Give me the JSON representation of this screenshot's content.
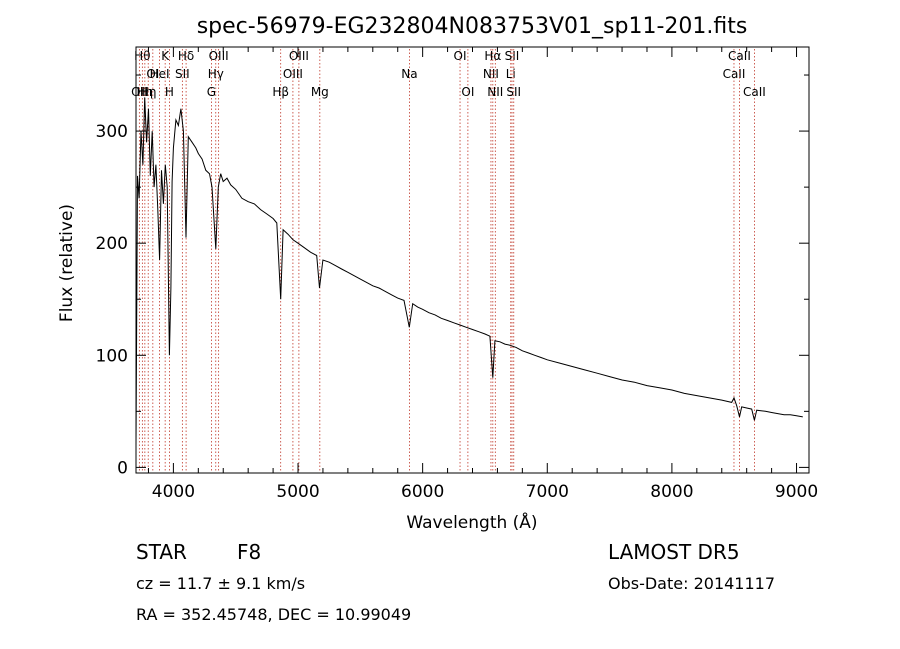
{
  "chart_data": {
    "type": "line",
    "title": "spec-56979-EG232804N083753V01_sp11-201.fits",
    "xlabel": "Wavelength (Å)",
    "ylabel": "Flux (relative)",
    "xlim": [
      3700,
      9100
    ],
    "ylim": [
      -5,
      375
    ],
    "xticks": [
      4000,
      5000,
      6000,
      7000,
      8000,
      9000
    ],
    "yticks": [
      0,
      100,
      200,
      300
    ],
    "grid": false,
    "series": [
      {
        "points": [
          [
            3700,
            20
          ],
          [
            3712,
            260
          ],
          [
            3725,
            240
          ],
          [
            3740,
            300
          ],
          [
            3755,
            270
          ],
          [
            3770,
            330
          ],
          [
            3785,
            290
          ],
          [
            3800,
            320
          ],
          [
            3815,
            260
          ],
          [
            3830,
            300
          ],
          [
            3845,
            250
          ],
          [
            3860,
            270
          ],
          [
            3875,
            230
          ],
          [
            3889,
            185
          ],
          [
            3905,
            265
          ],
          [
            3920,
            235
          ],
          [
            3935,
            270
          ],
          [
            3950,
            250
          ],
          [
            3968,
            100
          ],
          [
            3980,
            160
          ],
          [
            3990,
            255
          ],
          [
            4000,
            285
          ],
          [
            4020,
            310
          ],
          [
            4040,
            305
          ],
          [
            4060,
            320
          ],
          [
            4080,
            300
          ],
          [
            4101,
            205
          ],
          [
            4120,
            295
          ],
          [
            4150,
            290
          ],
          [
            4180,
            285
          ],
          [
            4200,
            280
          ],
          [
            4230,
            275
          ],
          [
            4260,
            265
          ],
          [
            4290,
            262
          ],
          [
            4310,
            250
          ],
          [
            4340,
            195
          ],
          [
            4360,
            250
          ],
          [
            4380,
            262
          ],
          [
            4400,
            255
          ],
          [
            4430,
            258
          ],
          [
            4460,
            252
          ],
          [
            4500,
            248
          ],
          [
            4550,
            240
          ],
          [
            4600,
            237
          ],
          [
            4650,
            235
          ],
          [
            4700,
            230
          ],
          [
            4750,
            226
          ],
          [
            4800,
            222
          ],
          [
            4830,
            218
          ],
          [
            4861,
            150
          ],
          [
            4880,
            212
          ],
          [
            4920,
            208
          ],
          [
            4960,
            203
          ],
          [
            5000,
            200
          ],
          [
            5050,
            196
          ],
          [
            5100,
            192
          ],
          [
            5150,
            189
          ],
          [
            5172,
            160
          ],
          [
            5200,
            185
          ],
          [
            5250,
            183
          ],
          [
            5300,
            180
          ],
          [
            5350,
            177
          ],
          [
            5400,
            174
          ],
          [
            5450,
            171
          ],
          [
            5500,
            168
          ],
          [
            5550,
            165
          ],
          [
            5600,
            162
          ],
          [
            5650,
            160
          ],
          [
            5700,
            157
          ],
          [
            5750,
            154
          ],
          [
            5800,
            151
          ],
          [
            5850,
            149
          ],
          [
            5893,
            125
          ],
          [
            5920,
            146
          ],
          [
            5960,
            143
          ],
          [
            6000,
            141
          ],
          [
            6050,
            138
          ],
          [
            6100,
            136
          ],
          [
            6150,
            133
          ],
          [
            6200,
            131
          ],
          [
            6250,
            129
          ],
          [
            6300,
            127
          ],
          [
            6350,
            125
          ],
          [
            6400,
            123
          ],
          [
            6450,
            121
          ],
          [
            6500,
            119
          ],
          [
            6540,
            117
          ],
          [
            6563,
            80
          ],
          [
            6580,
            113
          ],
          [
            6620,
            112
          ],
          [
            6660,
            110
          ],
          [
            6700,
            109
          ],
          [
            6750,
            107
          ],
          [
            6800,
            104
          ],
          [
            6850,
            102
          ],
          [
            6900,
            100
          ],
          [
            6950,
            98
          ],
          [
            7000,
            96
          ],
          [
            7100,
            93
          ],
          [
            7200,
            90
          ],
          [
            7300,
            87
          ],
          [
            7400,
            84
          ],
          [
            7500,
            81
          ],
          [
            7600,
            78
          ],
          [
            7700,
            76
          ],
          [
            7800,
            73
          ],
          [
            7900,
            71
          ],
          [
            8000,
            69
          ],
          [
            8100,
            66
          ],
          [
            8200,
            64
          ],
          [
            8300,
            62
          ],
          [
            8400,
            60
          ],
          [
            8480,
            58
          ],
          [
            8498,
            62
          ],
          [
            8520,
            55
          ],
          [
            8542,
            45
          ],
          [
            8560,
            54
          ],
          [
            8600,
            53
          ],
          [
            8640,
            52
          ],
          [
            8662,
            42
          ],
          [
            8680,
            51
          ],
          [
            8750,
            50
          ],
          [
            8800,
            49
          ],
          [
            8850,
            48
          ],
          [
            8900,
            47
          ],
          [
            8950,
            47
          ],
          [
            9000,
            46
          ],
          [
            9050,
            45
          ]
        ]
      }
    ],
    "line_markers": [
      {
        "x": 3727,
        "label": "OII",
        "row": 2
      },
      {
        "x": 3751,
        "label": "Hθ",
        "row": 0
      },
      {
        "x": 3771,
        "label": "Hη",
        "row": 2
      },
      {
        "x": 3798,
        "label": "Hη",
        "row": 2
      },
      {
        "x": 3835,
        "label": "OI",
        "row": 1
      },
      {
        "x": 3889,
        "label": "HeI",
        "row": 1
      },
      {
        "x": 3934,
        "label": "K",
        "row": 0
      },
      {
        "x": 3968,
        "label": "H",
        "row": 2
      },
      {
        "x": 4072,
        "label": "SII",
        "row": 1
      },
      {
        "x": 4102,
        "label": "Hδ",
        "row": 0
      },
      {
        "x": 4305,
        "label": "G",
        "row": 2
      },
      {
        "x": 4340,
        "label": "Hγ",
        "row": 1
      },
      {
        "x": 4363,
        "label": "OIII",
        "row": 0
      },
      {
        "x": 4861,
        "label": "Hβ",
        "row": 2
      },
      {
        "x": 4959,
        "label": "OIII",
        "row": 1
      },
      {
        "x": 5007,
        "label": "OIII",
        "row": 0
      },
      {
        "x": 5175,
        "label": "Mg",
        "row": 2
      },
      {
        "x": 5894,
        "label": "Na",
        "row": 1
      },
      {
        "x": 6300,
        "label": "OI",
        "row": 0
      },
      {
        "x": 6363,
        "label": "OI",
        "row": 2
      },
      {
        "x": 6548,
        "label": "NII",
        "row": 1
      },
      {
        "x": 6563,
        "label": "Hα",
        "row": 0
      },
      {
        "x": 6583,
        "label": "NII",
        "row": 2
      },
      {
        "x": 6707,
        "label": "Li",
        "row": 1
      },
      {
        "x": 6717,
        "label": "SII",
        "row": 0
      },
      {
        "x": 6731,
        "label": "SII",
        "row": 2
      },
      {
        "x": 8498,
        "label": "CaII",
        "row": 1
      },
      {
        "x": 8542,
        "label": "CaII",
        "row": 0
      },
      {
        "x": 8662,
        "label": "CaII",
        "row": 2
      }
    ],
    "marker_color": "#c0392b"
  },
  "footer": {
    "class_label": "STAR",
    "subclass": "F8",
    "redshift_text": "cz = 11.7 ± 9.1 km/s",
    "coords_text": "RA = 352.45748, DEC =  10.99049",
    "survey": "LAMOST DR5",
    "obs_date": "Obs-Date: 20141117"
  }
}
